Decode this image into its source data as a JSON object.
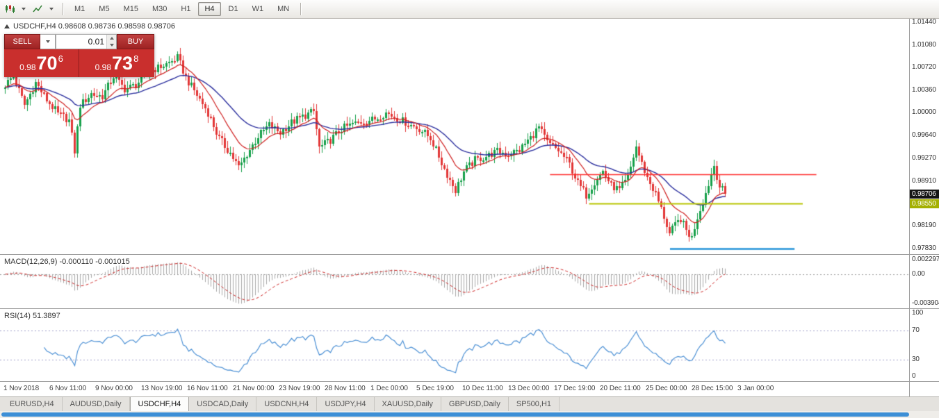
{
  "toolbar": {
    "timeframes": [
      "M1",
      "M5",
      "M15",
      "M30",
      "H1",
      "H4",
      "D1",
      "W1",
      "MN"
    ],
    "active_timeframe": "H4",
    "icons": [
      "chart-type-icon",
      "indicators-icon"
    ]
  },
  "chart_header": {
    "title": "USDCHF,H4 0.98608 0.98736 0.98598 0.98706",
    "symbol": "USDCHF,H4",
    "open": "0.98608",
    "high": "0.98736",
    "low": "0.98598",
    "close": "0.98706"
  },
  "trade_panel": {
    "sell_label": "SELL",
    "buy_label": "BUY",
    "volume": "0.01",
    "sell_price_prefix": "0.98",
    "sell_price_big": "70",
    "sell_price_sup": "6",
    "buy_price_prefix": "0.98",
    "buy_price_big": "73",
    "buy_price_sup": "8"
  },
  "price_scale": {
    "labels": [
      "1.01440",
      "1.01080",
      "1.00720",
      "1.00360",
      "1.00000",
      "0.99640",
      "0.99270",
      "0.98910",
      "0.98550",
      "0.98190",
      "0.97830"
    ],
    "badges": [
      {
        "text": "0.98706",
        "bg": "#141414"
      },
      {
        "text": "0.98550",
        "bg": "#a4b000"
      }
    ]
  },
  "time_axis": {
    "labels": [
      "1 Nov 2018",
      "6 Nov 11:00",
      "9 Nov 00:00",
      "13 Nov 19:00",
      "16 Nov 11:00",
      "21 Nov 00:00",
      "23 Nov 19:00",
      "28 Nov 11:00",
      "1 Dec 00:00",
      "5 Dec 19:00",
      "10 Dec 11:00",
      "13 Dec 00:00",
      "17 Dec 19:00",
      "20 Dec 11:00",
      "25 Dec 00:00",
      "28 Dec 15:00",
      "3 Jan 00:00"
    ]
  },
  "macd_panel": {
    "label": "MACD(12,26,9) -0.000110 -0.001015",
    "scale_top": "0.002297",
    "scale_zero": "0.00",
    "scale_bottom": "-0.003904"
  },
  "rsi_panel": {
    "label": "RSI(14) 51.3897",
    "scale": [
      "100",
      "70",
      "30",
      "0"
    ]
  },
  "window": {
    "tabs": [
      "EURUSD,H4",
      "AUDUSD,Daily",
      "USDCHF,H4",
      "USDCAD,Daily",
      "USDCNH,H4",
      "USDJPY,H4",
      "XAUUSD,Daily",
      "GBPUSD,Daily",
      "SP500,H1"
    ],
    "active_tab": "USDCHF,H4"
  },
  "chart_data": {
    "type": "candlestick",
    "symbol": "USDCHF",
    "timeframe": "H4",
    "ohlc_current": {
      "open": 0.98608,
      "high": 0.98736,
      "low": 0.98598,
      "close": 0.98706
    },
    "price_min": 0.9774,
    "price_max": 1.015,
    "n_candles": 260,
    "last_close": 0.98706,
    "price_path": [
      [
        0,
        1.004
      ],
      [
        4,
        1.0058
      ],
      [
        8,
        1.0012
      ],
      [
        12,
        1.0048
      ],
      [
        16,
        1.002
      ],
      [
        20,
        0.9998
      ],
      [
        24,
        0.9988
      ],
      [
        26,
        0.9938
      ],
      [
        28,
        1.0012
      ],
      [
        32,
        1.003
      ],
      [
        36,
        1.0026
      ],
      [
        40,
        1.0058
      ],
      [
        44,
        1.0038
      ],
      [
        48,
        1.0044
      ],
      [
        52,
        1.0064
      ],
      [
        56,
        1.0072
      ],
      [
        60,
        1.008
      ],
      [
        63,
        1.0088
      ],
      [
        66,
        1.0056
      ],
      [
        70,
        1.0028
      ],
      [
        74,
        1.0
      ],
      [
        78,
        0.9958
      ],
      [
        82,
        0.9936
      ],
      [
        85,
        0.9912
      ],
      [
        88,
        0.9934
      ],
      [
        92,
        0.9962
      ],
      [
        96,
        0.998
      ],
      [
        100,
        0.9968
      ],
      [
        104,
        0.9984
      ],
      [
        108,
        0.9994
      ],
      [
        112,
        1.0002
      ],
      [
        114,
        0.9944
      ],
      [
        118,
        0.9956
      ],
      [
        122,
        0.9974
      ],
      [
        126,
        0.9982
      ],
      [
        130,
        0.9986
      ],
      [
        134,
        0.999
      ],
      [
        138,
        1.0
      ],
      [
        142,
        0.9992
      ],
      [
        146,
        0.9982
      ],
      [
        150,
        0.9974
      ],
      [
        154,
        0.996
      ],
      [
        158,
        0.992
      ],
      [
        161,
        0.9892
      ],
      [
        163,
        0.9876
      ],
      [
        166,
        0.9906
      ],
      [
        170,
        0.9924
      ],
      [
        174,
        0.993
      ],
      [
        178,
        0.9938
      ],
      [
        182,
        0.9934
      ],
      [
        186,
        0.994
      ],
      [
        190,
        0.996
      ],
      [
        193,
        0.9976
      ],
      [
        196,
        0.9952
      ],
      [
        200,
        0.994
      ],
      [
        204,
        0.9918
      ],
      [
        207,
        0.9888
      ],
      [
        210,
        0.9868
      ],
      [
        213,
        0.989
      ],
      [
        216,
        0.9906
      ],
      [
        219,
        0.9884
      ],
      [
        222,
        0.9876
      ],
      [
        225,
        0.9896
      ],
      [
        228,
        0.9946
      ],
      [
        230,
        0.9918
      ],
      [
        232,
        0.9896
      ],
      [
        235,
        0.987
      ],
      [
        238,
        0.9834
      ],
      [
        240,
        0.9806
      ],
      [
        242,
        0.982
      ],
      [
        244,
        0.983
      ],
      [
        246,
        0.9812
      ],
      [
        248,
        0.98
      ],
      [
        250,
        0.9834
      ],
      [
        252,
        0.9858
      ],
      [
        254,
        0.9886
      ],
      [
        256,
        0.9916
      ],
      [
        258,
        0.9882
      ],
      [
        260,
        0.9871
      ]
    ],
    "hlines": [
      {
        "price": 0.9902,
        "x1": 0.605,
        "x2": 0.898,
        "color": "#ff2e2e",
        "width": 1.5
      },
      {
        "price": 0.9855,
        "x1": 0.648,
        "x2": 0.883,
        "color": "#b8c400",
        "width": 2
      },
      {
        "price": 0.9783,
        "x1": 0.737,
        "x2": 0.874,
        "color": "#46a4df",
        "width": 3
      }
    ],
    "indicators": {
      "ma_fast_period": 12,
      "ma_slow_period": 32,
      "macd_params": [
        12,
        26,
        9
      ],
      "macd_value": -0.00011,
      "macd_signal": -0.001015,
      "rsi_period": 14,
      "rsi_last": 51.3897
    },
    "macd_range": {
      "max": 0.002297,
      "min": -0.003904
    },
    "rsi_levels": [
      70,
      30
    ],
    "rsi_range": [
      0,
      100
    ],
    "colors": {
      "up": "#16a04a",
      "down": "#e23636",
      "ma_fast": "#cf1f1f",
      "ma_slow": "#2b2f9e",
      "macd_hist": "#a8a8a8",
      "macd_signal": "#cc2222",
      "rsi": "#4a8fd4",
      "grid_dash": "#9f9fc8",
      "hline_red": "#ff2e2e",
      "hline_yellow": "#b8c400",
      "hline_blue": "#46a4df"
    }
  }
}
